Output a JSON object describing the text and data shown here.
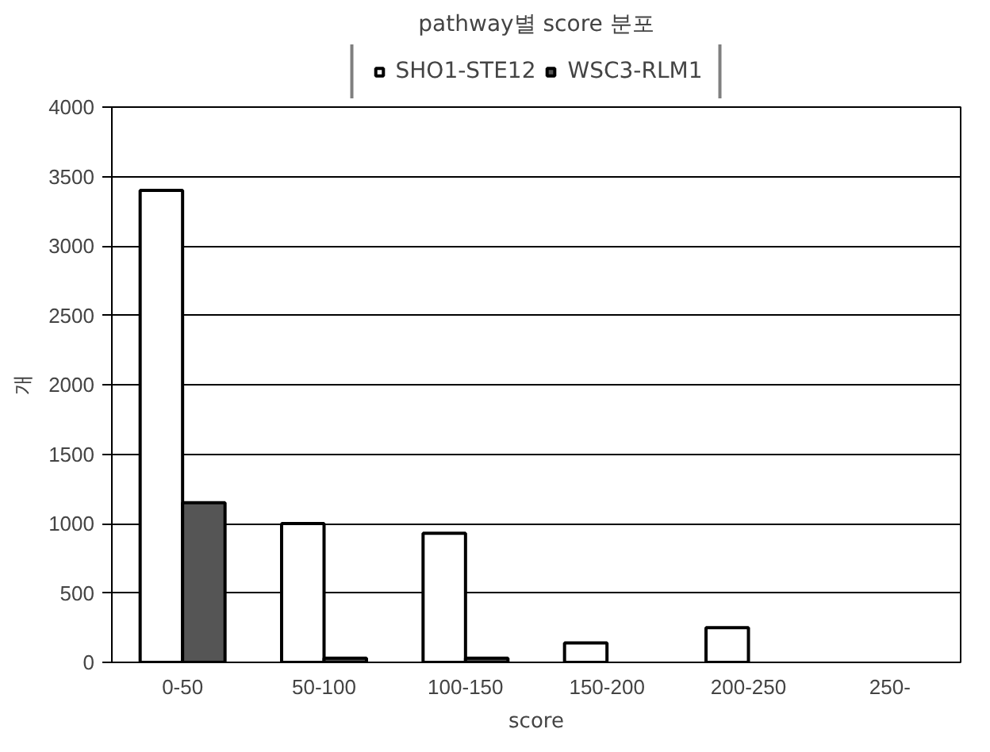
{
  "chart_data": {
    "type": "bar",
    "title": "pathway별 score 분포",
    "xlabel": "score",
    "ylabel": "개",
    "categories": [
      "0-50",
      "50-100",
      "100-150",
      "150-200",
      "200-250",
      "250-"
    ],
    "series": [
      {
        "name": "SHO1-STE12",
        "color": "#ffffff",
        "values": [
          3400,
          1000,
          930,
          140,
          250,
          0
        ]
      },
      {
        "name": "WSC3-RLM1",
        "color": "#555555",
        "values": [
          1150,
          30,
          30,
          0,
          0,
          0
        ]
      }
    ],
    "ylim": [
      0,
      4000
    ],
    "yticks": [
      0,
      500,
      1000,
      1500,
      2000,
      2500,
      3000,
      3500,
      4000
    ],
    "grid": "y",
    "legend": "top"
  }
}
